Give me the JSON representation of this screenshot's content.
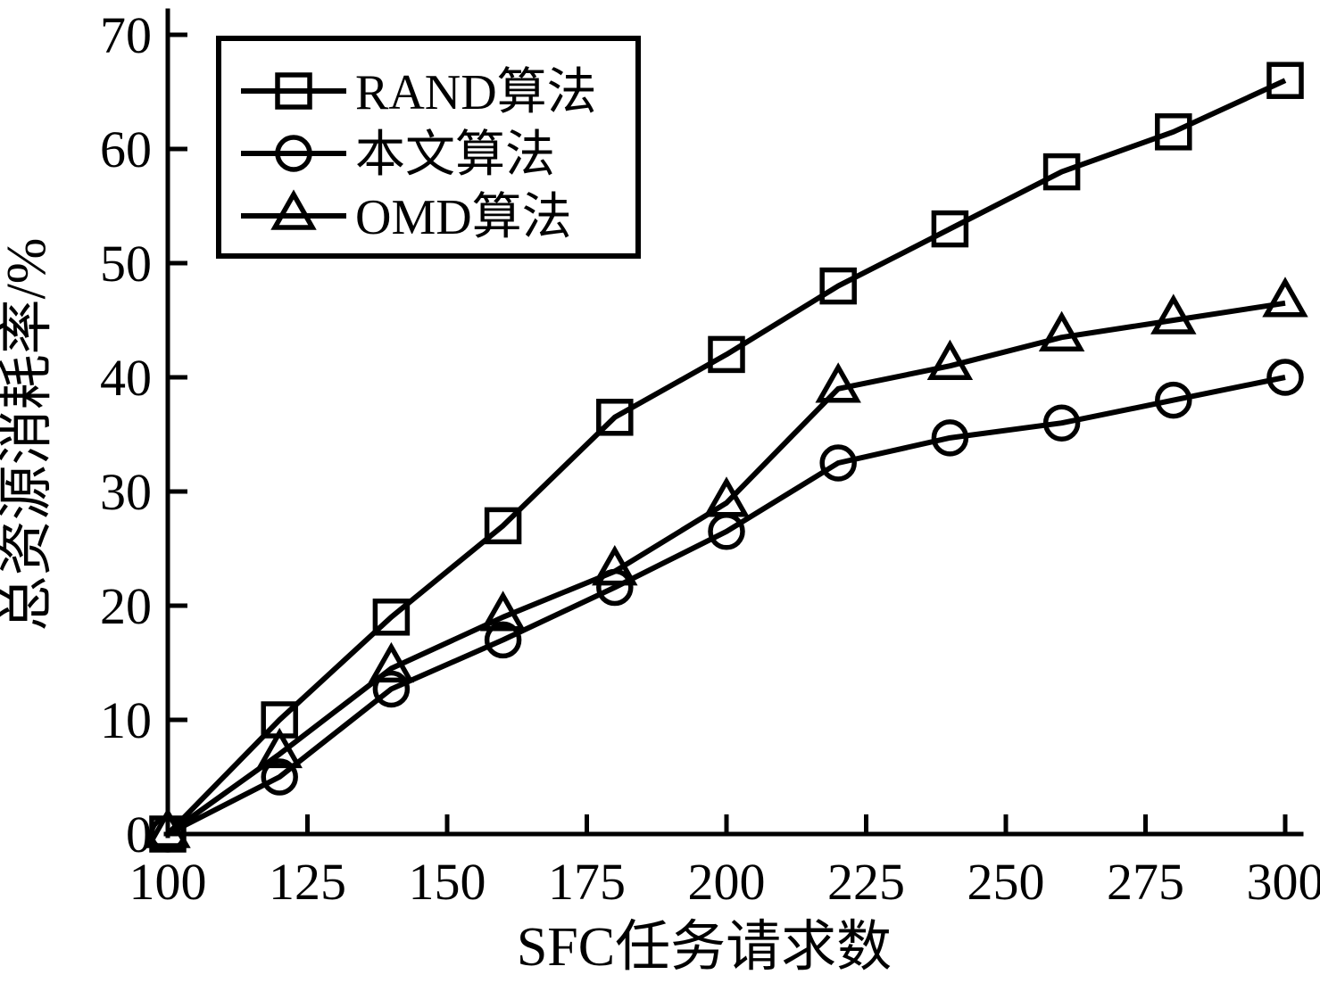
{
  "chart_data": {
    "type": "line",
    "title": "",
    "xlabel": "SFC任务请求数",
    "ylabel": "总资源消耗率/%",
    "xlim": [
      100,
      300
    ],
    "ylim": [
      0,
      70
    ],
    "x_ticks": [
      100,
      125,
      150,
      175,
      200,
      225,
      250,
      275,
      300
    ],
    "y_ticks": [
      0,
      10,
      20,
      30,
      40,
      50,
      60,
      70
    ],
    "grid": false,
    "legend_position": "top-left",
    "x": [
      100,
      120,
      140,
      160,
      180,
      200,
      220,
      240,
      260,
      280,
      300
    ],
    "series": [
      {
        "name": "RAND算法",
        "marker": "square",
        "values": [
          0,
          10,
          19,
          27,
          36.5,
          42,
          48,
          53,
          58,
          61.5,
          66
        ]
      },
      {
        "name": "本文算法",
        "marker": "circle",
        "values": [
          0,
          5,
          12.7,
          17,
          21.6,
          26.5,
          32.5,
          34.7,
          36,
          38,
          40
        ]
      },
      {
        "name": "OMD算法",
        "marker": "triangle",
        "values": [
          0,
          7,
          14.5,
          19,
          23,
          29,
          39,
          41,
          43.5,
          45,
          46.5
        ]
      }
    ],
    "colors": {
      "line": "#000000",
      "background": "#ffffff"
    }
  }
}
